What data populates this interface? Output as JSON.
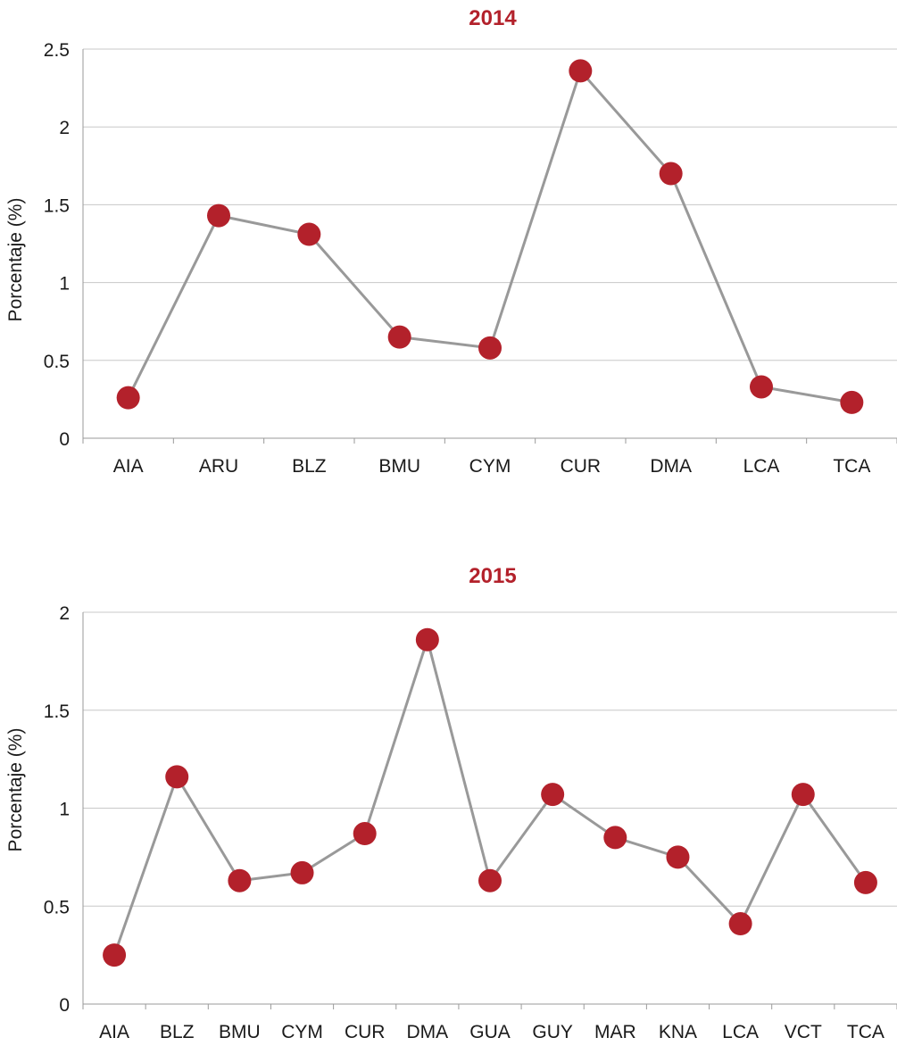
{
  "chart_data": [
    {
      "type": "line",
      "title": "2014",
      "xlabel": "",
      "ylabel": "Porcentaje (%)",
      "categories": [
        "AIA",
        "ARU",
        "BLZ",
        "BMU",
        "CYM",
        "CUR",
        "DMA",
        "LCA",
        "TCA"
      ],
      "values": [
        0.26,
        1.43,
        1.31,
        0.65,
        0.58,
        2.36,
        1.7,
        0.33,
        0.23
      ],
      "ylim": [
        0,
        2.5
      ],
      "yticks": [
        0,
        0.5,
        1,
        1.5,
        2,
        2.5
      ],
      "ytick_labels": [
        "0",
        "0.5",
        "1",
        "1.5",
        "2",
        "2.5"
      ],
      "grid": true
    },
    {
      "type": "line",
      "title": "2015",
      "xlabel": "",
      "ylabel": "Porcentaje (%)",
      "categories": [
        "AIA",
        "BLZ",
        "BMU",
        "CYM",
        "CUR",
        "DMA",
        "GUA",
        "GUY",
        "MAR",
        "KNA",
        "LCA",
        "VCT",
        "TCA"
      ],
      "values": [
        0.25,
        1.16,
        0.63,
        0.67,
        0.87,
        1.86,
        0.63,
        1.07,
        0.85,
        0.75,
        0.41,
        1.07,
        0.62
      ],
      "ylim": [
        0,
        2
      ],
      "yticks": [
        0,
        0.5,
        1,
        1.5,
        2
      ],
      "ytick_labels": [
        "0",
        "0.5",
        "1",
        "1.5",
        "2"
      ],
      "grid": true
    }
  ],
  "colors": {
    "title": "#b3212b",
    "marker": "#b3212b",
    "line": "#999999",
    "grid": "#c8c8c8"
  }
}
